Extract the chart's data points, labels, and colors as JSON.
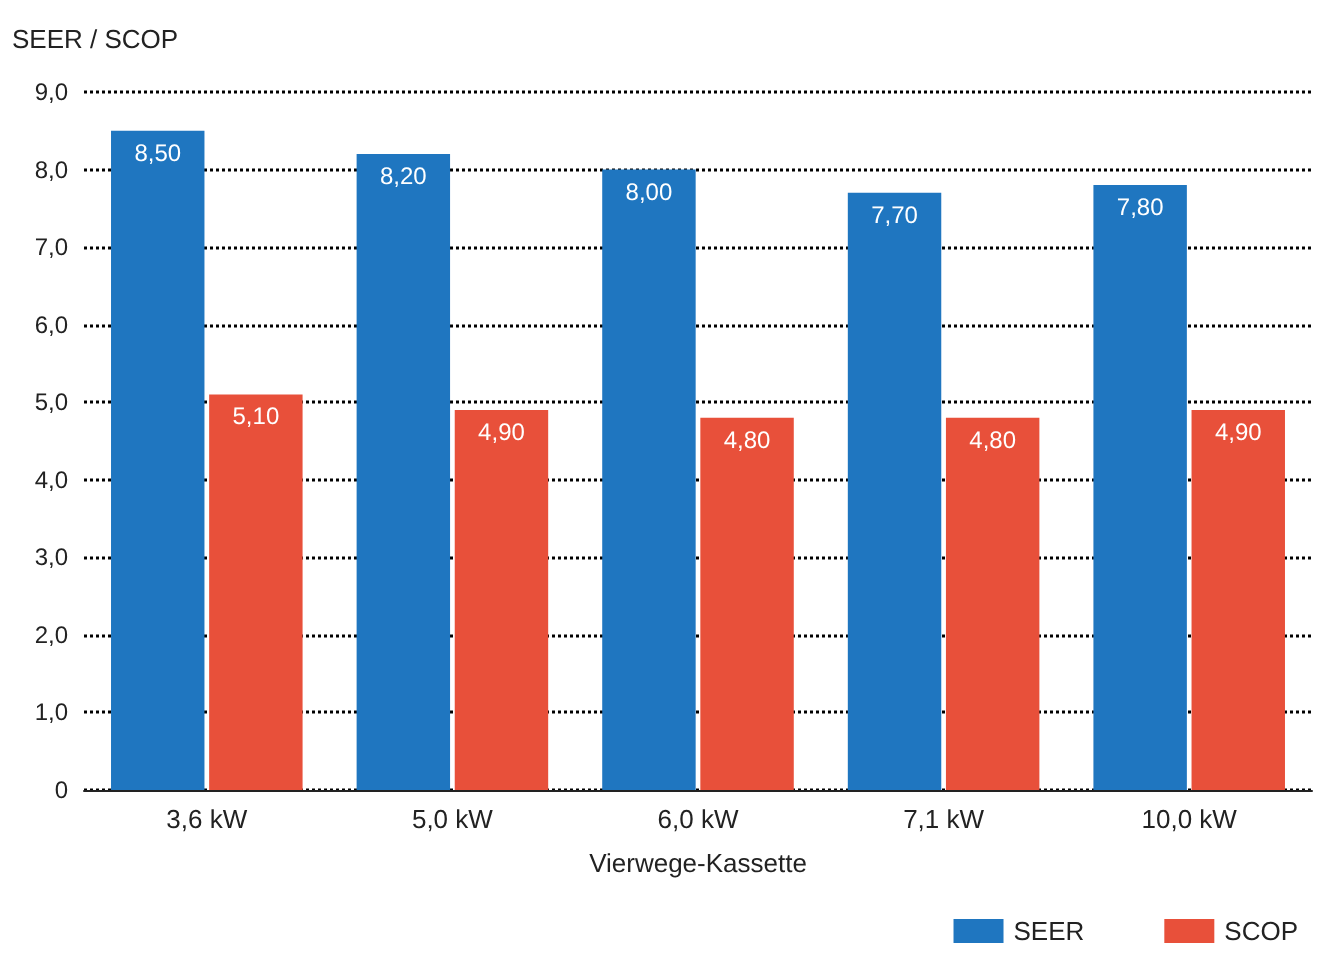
{
  "chart_data": {
    "type": "bar",
    "ylabel": "SEER / SCOP",
    "xlabel": "Vierwege-Kassette",
    "categories": [
      "3,6 kW",
      "5,0 kW",
      "6,0 kW",
      "7,1 kW",
      "10,0 kW"
    ],
    "series": [
      {
        "name": "SEER",
        "color": "#1f76c0",
        "values": [
          8.5,
          8.2,
          8.0,
          7.7,
          7.8
        ],
        "value_labels": [
          "8,50",
          "8,20",
          "8,00",
          "7,70",
          "7,80"
        ]
      },
      {
        "name": "SCOP",
        "color": "#e8503a",
        "values": [
          5.1,
          4.9,
          4.8,
          4.8,
          4.9
        ],
        "value_labels": [
          "5,10",
          "4,90",
          "4,80",
          "4,80",
          "4,90"
        ]
      }
    ],
    "ylim": [
      0,
      9
    ],
    "yticks": [
      {
        "value": 0,
        "label": "0"
      },
      {
        "value": 1,
        "label": "1,0"
      },
      {
        "value": 2,
        "label": "2,0"
      },
      {
        "value": 3,
        "label": "3,0"
      },
      {
        "value": 4,
        "label": "4,0"
      },
      {
        "value": 5,
        "label": "5,0"
      },
      {
        "value": 6,
        "label": "6,0"
      },
      {
        "value": 7,
        "label": "7,0"
      },
      {
        "value": 8,
        "label": "8,0"
      },
      {
        "value": 9,
        "label": "9,0"
      }
    ],
    "grid": "y",
    "line_style": "dotted",
    "legend": "bottom right"
  }
}
